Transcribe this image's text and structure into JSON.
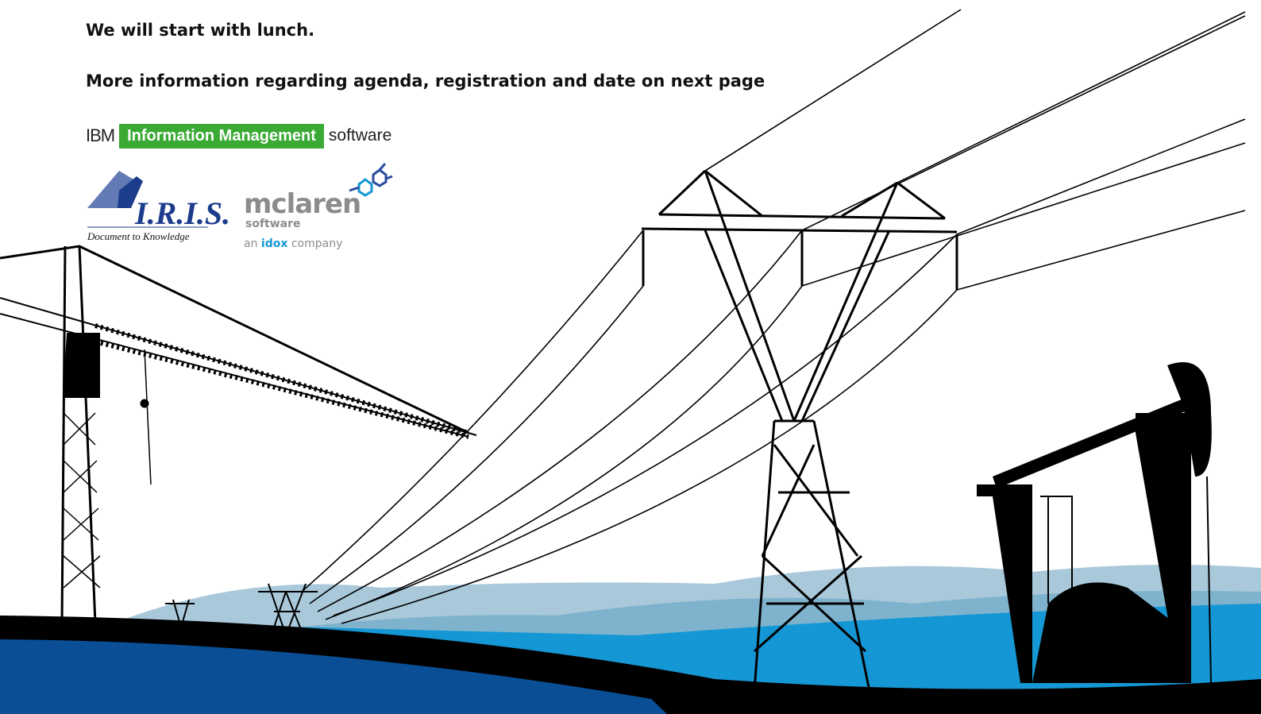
{
  "text": {
    "lines": [
      "We will start with lunch.",
      "More information regarding agenda, registration and date on next page"
    ]
  },
  "logos": {
    "ibm": {
      "brand": "IBM",
      "product": "Information Management",
      "suffix": "software"
    },
    "iris": {
      "name": "I.R.I.S.",
      "tagline": "Document to Knowledge"
    },
    "mclaren": {
      "name": "mclaren",
      "sub": "software",
      "prefix": "an",
      "company": "idox",
      "suffix": "company"
    }
  }
}
